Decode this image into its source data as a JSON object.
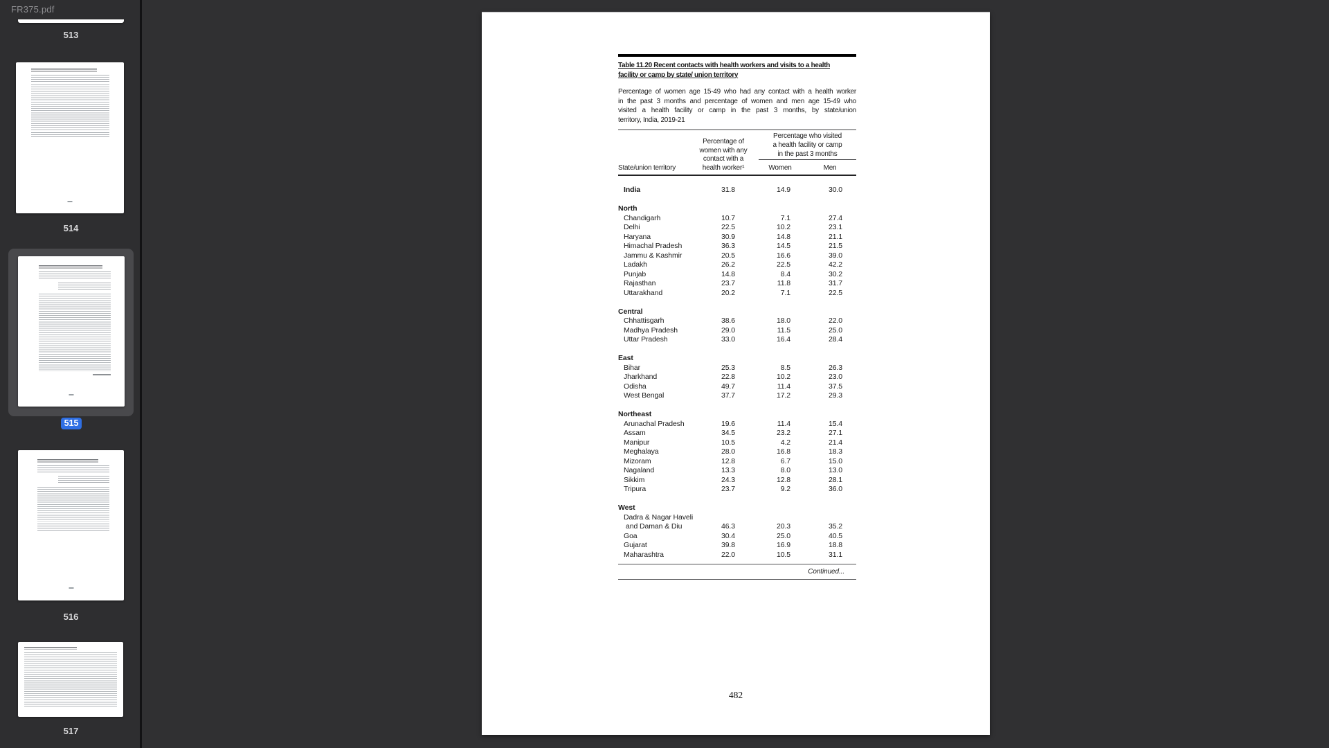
{
  "window": {
    "filename": "FR375.pdf"
  },
  "colors": {
    "selected_badge": "#2f6fe4",
    "sidebar_bg": "#2e2e30",
    "page_bg": "#ffffff"
  },
  "sidebar": {
    "thumbnails": [
      {
        "page": "513",
        "partial": true
      },
      {
        "page": "514",
        "orientation": "portrait"
      },
      {
        "page": "515",
        "orientation": "portrait",
        "selected": true
      },
      {
        "page": "516",
        "orientation": "portrait"
      },
      {
        "page": "517",
        "orientation": "landscape"
      }
    ]
  },
  "document": {
    "page_number": "482",
    "continued": "Continued...",
    "table": {
      "title_lines": [
        "Table 11.20 Recent contacts with health workers and visits to a health",
        "facility or camp by state/ union territory"
      ],
      "intro_lines": [
        "Percentage of women age 15-49 who had any contact with a health worker",
        "in the past 3 months and percentage of women and men age 15-49 who",
        "visited a health facility or camp in the past 3 months, by state/union",
        "territory, India, 2019-21"
      ],
      "col_state": "State/union territory",
      "col_contact_lines": [
        "Percentage of",
        "women with any",
        "contact with a",
        "health worker¹"
      ],
      "col_visit_lines": [
        "Percentage who visited",
        "a health facility or camp",
        "in the past 3 months"
      ],
      "col_women": "Women",
      "col_men": "Men",
      "rows": [
        {
          "t": "d",
          "label": "India",
          "bold": true,
          "values": [
            "31.8",
            "14.9",
            "30.0"
          ]
        },
        {
          "t": "gap"
        },
        {
          "t": "s",
          "label": "North"
        },
        {
          "t": "d",
          "label": "Chandigarh",
          "values": [
            "10.7",
            "7.1",
            "27.4"
          ]
        },
        {
          "t": "d",
          "label": "Delhi",
          "values": [
            "22.5",
            "10.2",
            "23.1"
          ]
        },
        {
          "t": "d",
          "label": "Haryana",
          "values": [
            "30.9",
            "14.8",
            "21.1"
          ]
        },
        {
          "t": "d",
          "label": "Himachal Pradesh",
          "values": [
            "36.3",
            "14.5",
            "21.5"
          ]
        },
        {
          "t": "d",
          "label": "Jammu & Kashmir",
          "values": [
            "20.5",
            "16.6",
            "39.0"
          ]
        },
        {
          "t": "d",
          "label": "Ladakh",
          "values": [
            "26.2",
            "22.5",
            "42.2"
          ]
        },
        {
          "t": "d",
          "label": "Punjab",
          "values": [
            "14.8",
            "8.4",
            "30.2"
          ]
        },
        {
          "t": "d",
          "label": "Rajasthan",
          "values": [
            "23.7",
            "11.8",
            "31.7"
          ]
        },
        {
          "t": "d",
          "label": "Uttarakhand",
          "values": [
            "20.2",
            "7.1",
            "22.5"
          ]
        },
        {
          "t": "gap"
        },
        {
          "t": "s",
          "label": "Central"
        },
        {
          "t": "d",
          "label": "Chhattisgarh",
          "values": [
            "38.6",
            "18.0",
            "22.0"
          ]
        },
        {
          "t": "d",
          "label": "Madhya Pradesh",
          "values": [
            "29.0",
            "11.5",
            "25.0"
          ]
        },
        {
          "t": "d",
          "label": "Uttar Pradesh",
          "values": [
            "33.0",
            "16.4",
            "28.4"
          ]
        },
        {
          "t": "gap"
        },
        {
          "t": "s",
          "label": "East"
        },
        {
          "t": "d",
          "label": "Bihar",
          "values": [
            "25.3",
            "8.5",
            "26.3"
          ]
        },
        {
          "t": "d",
          "label": "Jharkhand",
          "values": [
            "22.8",
            "10.2",
            "23.0"
          ]
        },
        {
          "t": "d",
          "label": "Odisha",
          "values": [
            "49.7",
            "11.4",
            "37.5"
          ]
        },
        {
          "t": "d",
          "label": "West Bengal",
          "values": [
            "37.7",
            "17.2",
            "29.3"
          ]
        },
        {
          "t": "gap"
        },
        {
          "t": "s",
          "label": "Northeast"
        },
        {
          "t": "d",
          "label": "Arunachal Pradesh",
          "values": [
            "19.6",
            "11.4",
            "15.4"
          ]
        },
        {
          "t": "d",
          "label": "Assam",
          "values": [
            "34.5",
            "23.2",
            "27.1"
          ]
        },
        {
          "t": "d",
          "label": "Manipur",
          "values": [
            "10.5",
            "4.2",
            "21.4"
          ]
        },
        {
          "t": "d",
          "label": "Meghalaya",
          "values": [
            "28.0",
            "16.8",
            "18.3"
          ]
        },
        {
          "t": "d",
          "label": "Mizoram",
          "values": [
            "12.8",
            "6.7",
            "15.0"
          ]
        },
        {
          "t": "d",
          "label": "Nagaland",
          "values": [
            "13.3",
            "8.0",
            "13.0"
          ]
        },
        {
          "t": "d",
          "label": "Sikkim",
          "values": [
            "24.3",
            "12.8",
            "28.1"
          ]
        },
        {
          "t": "d",
          "label": "Tripura",
          "values": [
            "23.7",
            "9.2",
            "36.0"
          ]
        },
        {
          "t": "gap"
        },
        {
          "t": "s",
          "label": "West"
        },
        {
          "t": "l",
          "label": "Dadra & Nagar Haveli"
        },
        {
          "t": "d",
          "label": "and Daman & Diu",
          "indent": 2,
          "values": [
            "46.3",
            "20.3",
            "35.2"
          ]
        },
        {
          "t": "d",
          "label": "Goa",
          "values": [
            "30.4",
            "25.0",
            "40.5"
          ]
        },
        {
          "t": "d",
          "label": "Gujarat",
          "values": [
            "39.8",
            "16.9",
            "18.8"
          ]
        },
        {
          "t": "d",
          "label": "Maharashtra",
          "values": [
            "22.0",
            "10.5",
            "31.1"
          ]
        }
      ]
    }
  }
}
